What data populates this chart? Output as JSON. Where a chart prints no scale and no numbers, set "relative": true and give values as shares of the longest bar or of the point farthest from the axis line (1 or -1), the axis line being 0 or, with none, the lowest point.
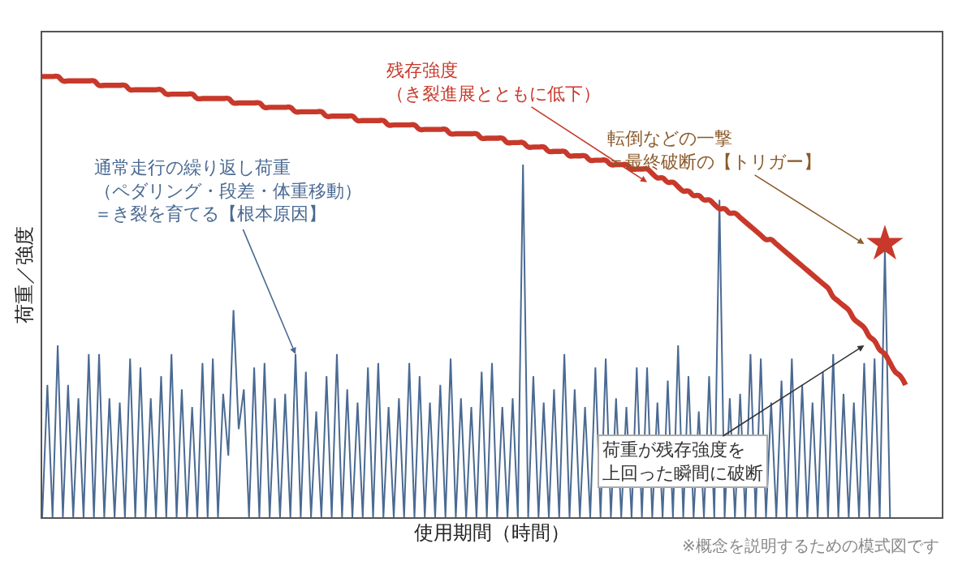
{
  "chart_data": {
    "type": "line",
    "relative": true,
    "xlabel": "使用期間（時間）",
    "ylabel": "荷重／強度",
    "annotations": [
      "残存強度（き裂進展とともに低下）",
      "通常走行の繰り返し荷重（ペダリング・段差・体重移動）＝き裂を育てる【根本原因】",
      "転倒などの一撃＝最終破断の【トリガー】",
      "荷重が残存強度を上回った瞬間に破断",
      "※概念を説明するための模式図です"
    ],
    "categories": [
      null,
      null,
      null,
      null,
      null,
      null,
      null,
      null,
      null,
      null,
      null,
      null,
      null,
      null,
      null,
      null,
      null,
      null,
      null,
      null,
      null,
      null,
      null,
      null,
      null,
      null,
      null,
      null,
      null,
      null,
      null,
      null,
      null,
      null,
      null,
      null,
      null,
      null,
      null,
      null,
      null,
      null,
      null,
      null,
      null,
      null,
      null,
      null,
      null,
      null,
      null,
      null,
      null,
      null,
      null,
      null,
      null,
      null,
      null,
      null,
      null,
      null,
      null,
      null,
      null,
      null,
      null,
      null,
      null,
      null,
      null,
      null,
      null,
      null,
      null,
      null,
      null,
      null,
      null,
      null,
      null,
      null,
      null,
      null,
      null,
      null,
      null,
      null,
      null,
      null,
      null,
      null,
      null,
      null,
      null,
      null,
      null,
      null,
      null,
      null,
      null,
      null,
      null,
      null,
      null,
      null,
      null,
      null,
      null,
      null,
      null,
      null,
      null,
      null,
      null,
      null,
      null,
      null,
      null,
      null,
      null,
      null,
      null,
      null,
      null,
      null,
      null,
      null,
      null,
      null,
      null,
      null,
      null,
      null,
      null,
      null,
      null,
      null,
      null,
      null,
      null,
      null,
      null,
      null,
      null,
      null,
      null,
      null,
      null,
      null,
      null,
      null,
      null,
      null,
      null,
      null,
      null,
      null,
      null,
      null,
      null,
      null,
      null,
      null,
      null,
      null,
      null,
      null,
      null,
      null,
      null,
      null,
      null,
      null,
      null
    ],
    "series": [
      {
        "marker": "none",
        "color": "#4a6a92",
        "values": [
          0,
          0.3,
          0,
          0.39,
          0,
          0.3,
          0,
          0.27,
          0,
          0.37,
          0,
          0.37,
          0,
          0.27,
          0,
          0.26,
          0,
          0.36,
          0,
          0.34,
          0,
          0.27,
          0,
          0.32,
          0,
          0.37,
          0,
          0.29,
          0,
          0.25,
          0,
          0.35,
          0,
          0.36,
          0,
          0.28,
          0.14,
          0.47,
          0.2,
          0.29,
          0,
          0.34,
          0,
          0.35,
          0,
          0.27,
          0,
          0.28,
          0,
          0.37,
          0,
          0.33,
          0,
          0.24,
          0,
          0.32,
          0,
          0.37,
          0,
          0.29,
          0,
          0.26,
          0,
          0.34,
          0,
          0.35,
          0,
          0.25,
          0,
          0.27,
          0,
          0.35,
          0,
          0.32,
          0,
          0.26,
          0,
          0.3,
          0,
          0.36,
          0,
          0.27,
          0,
          0.25,
          0,
          0.33,
          0,
          0.35,
          0,
          0.25,
          0,
          0.27,
          0,
          0.8,
          0,
          0.32,
          0,
          0.26,
          0,
          0.29,
          0,
          0.37,
          0,
          0.29,
          0,
          0.25,
          0,
          0.34,
          0,
          0.36,
          0,
          0.27,
          0,
          0.25,
          0,
          0.34,
          0,
          0.34,
          0,
          0.26,
          0,
          0.31,
          0,
          0.39,
          0,
          0.32,
          0,
          0.24,
          0,
          0.32,
          0,
          0.72,
          0,
          0.27,
          0,
          0.28,
          0,
          0.37,
          0,
          0.36,
          0,
          0.26,
          0,
          0.31,
          0,
          0.36,
          0,
          0.3,
          0,
          0.26,
          0,
          0.33,
          0,
          0.37,
          0,
          0.28,
          0,
          0.26,
          0,
          0.35,
          0,
          0.36,
          0,
          0.61,
          0,
          null,
          null,
          null,
          null,
          null,
          null,
          null,
          null,
          null,
          null
        ]
      },
      {
        "marker": "none",
        "color": "#c8392b",
        "values": [
          1,
          1,
          1,
          1,
          0.99,
          0.99,
          0.99,
          0.99,
          0.99,
          0.99,
          0.99,
          0.98,
          0.98,
          0.98,
          0.98,
          0.98,
          0.98,
          0.97,
          0.97,
          0.97,
          0.97,
          0.97,
          0.97,
          0.97,
          0.96,
          0.96,
          0.96,
          0.96,
          0.96,
          0.96,
          0.95,
          0.95,
          0.95,
          0.95,
          0.95,
          0.95,
          0.95,
          0.94,
          0.94,
          0.94,
          0.94,
          0.94,
          0.94,
          0.93,
          0.93,
          0.93,
          0.93,
          0.93,
          0.93,
          0.92,
          0.92,
          0.92,
          0.92,
          0.92,
          0.92,
          0.91,
          0.91,
          0.91,
          0.91,
          0.91,
          0.91,
          0.9,
          0.9,
          0.9,
          0.9,
          0.9,
          0.9,
          0.89,
          0.89,
          0.89,
          0.89,
          0.89,
          0.89,
          0.88,
          0.88,
          0.88,
          0.88,
          0.88,
          0.88,
          0.87,
          0.87,
          0.87,
          0.87,
          0.87,
          0.87,
          0.86,
          0.86,
          0.86,
          0.86,
          0.86,
          0.85,
          0.85,
          0.85,
          0.85,
          0.84,
          0.84,
          0.84,
          0.84,
          0.83,
          0.83,
          0.83,
          0.83,
          0.82,
          0.82,
          0.82,
          0.82,
          0.81,
          0.81,
          0.81,
          0.81,
          0.8,
          0.8,
          0.8,
          0.8,
          0.79,
          0.79,
          0.79,
          0.79,
          0.78,
          0.77,
          0.77,
          0.76,
          0.76,
          0.75,
          0.74,
          0.74,
          0.73,
          0.73,
          0.72,
          0.72,
          0.71,
          0.7,
          0.7,
          0.69,
          0.69,
          0.68,
          0.67,
          0.66,
          0.65,
          0.64,
          0.63,
          0.63,
          0.62,
          0.61,
          0.6,
          0.59,
          0.58,
          0.57,
          0.56,
          0.55,
          0.54,
          0.53,
          0.52,
          0.5,
          0.49,
          0.48,
          0.47,
          0.45,
          0.44,
          0.43,
          0.41,
          0.4,
          0.38,
          0.37,
          0.35,
          0.33,
          0.32,
          0.3,
          null,
          null,
          null,
          null,
          null,
          null,
          null
        ]
      },
      {
        "marker": "star",
        "color": "#c8392b",
        "values": [
          null,
          null,
          null,
          null,
          null,
          null,
          null,
          null,
          null,
          null,
          null,
          null,
          null,
          null,
          null,
          null,
          null,
          null,
          null,
          null,
          null,
          null,
          null,
          null,
          null,
          null,
          null,
          null,
          null,
          null,
          null,
          null,
          null,
          null,
          null,
          null,
          null,
          null,
          null,
          null,
          null,
          null,
          null,
          null,
          null,
          null,
          null,
          null,
          null,
          null,
          null,
          null,
          null,
          null,
          null,
          null,
          null,
          null,
          null,
          null,
          null,
          null,
          null,
          null,
          null,
          null,
          null,
          null,
          null,
          null,
          null,
          null,
          null,
          null,
          null,
          null,
          null,
          null,
          null,
          null,
          null,
          null,
          null,
          null,
          null,
          null,
          null,
          null,
          null,
          null,
          null,
          null,
          null,
          null,
          null,
          null,
          null,
          null,
          null,
          null,
          null,
          null,
          null,
          null,
          null,
          null,
          null,
          null,
          null,
          null,
          null,
          null,
          null,
          null,
          null,
          null,
          null,
          null,
          null,
          null,
          null,
          null,
          null,
          null,
          null,
          null,
          null,
          null,
          null,
          null,
          null,
          null,
          null,
          null,
          null,
          null,
          null,
          null,
          null,
          null,
          null,
          null,
          null,
          null,
          null,
          null,
          null,
          null,
          null,
          null,
          null,
          null,
          null,
          null,
          null,
          null,
          null,
          null,
          null,
          null,
          null,
          null,
          null,
          0.62,
          null,
          null,
          null,
          null,
          null,
          null,
          null,
          null,
          null,
          null,
          null
        ]
      }
    ]
  }
}
